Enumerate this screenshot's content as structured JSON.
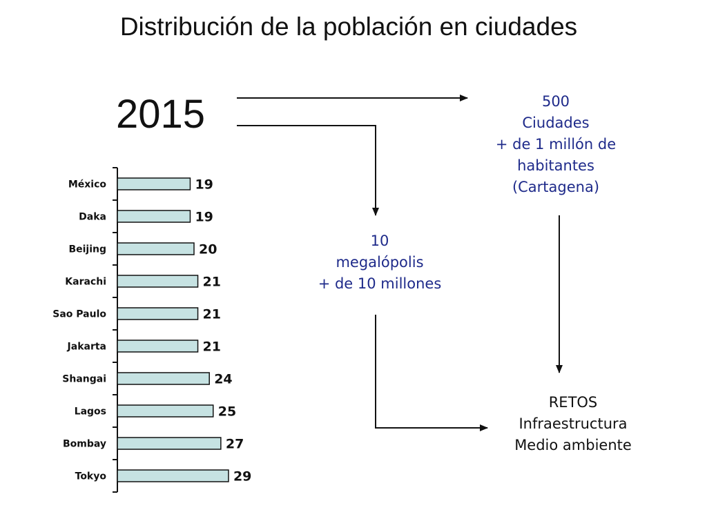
{
  "title": "Distribución de la población en ciudades",
  "year": "2015",
  "cities_block": [
    "500",
    "Ciudades",
    "+ de 1 millón de",
    "habitantes",
    "(Cartagena)"
  ],
  "megacities_block": [
    "10",
    "megalópolis",
    "+ de 10 millones"
  ],
  "challenges_block": [
    "RETOS",
    "Infraestructura",
    "Medio ambiente"
  ],
  "colors": {
    "bar_fill": "#c6e2e2",
    "accent_text": "#1e2a8a",
    "line": "#111111"
  },
  "chart_data": {
    "type": "bar",
    "orientation": "horizontal",
    "categories": [
      "México",
      "Daka",
      "Beijing",
      "Karachi",
      "Sao Paulo",
      "Jakarta",
      "Shangai",
      "Lagos",
      "Bombay",
      "Tokyo"
    ],
    "values": [
      19,
      19,
      20,
      21,
      21,
      21,
      24,
      25,
      27,
      29
    ],
    "data_labels": [
      "19",
      "19",
      "20",
      "21",
      "21",
      "21",
      "24",
      "25",
      "27",
      "29"
    ],
    "title": "",
    "xlabel": "",
    "ylabel": "",
    "xlim": [
      0,
      29
    ],
    "grid": false,
    "legend": "none"
  }
}
